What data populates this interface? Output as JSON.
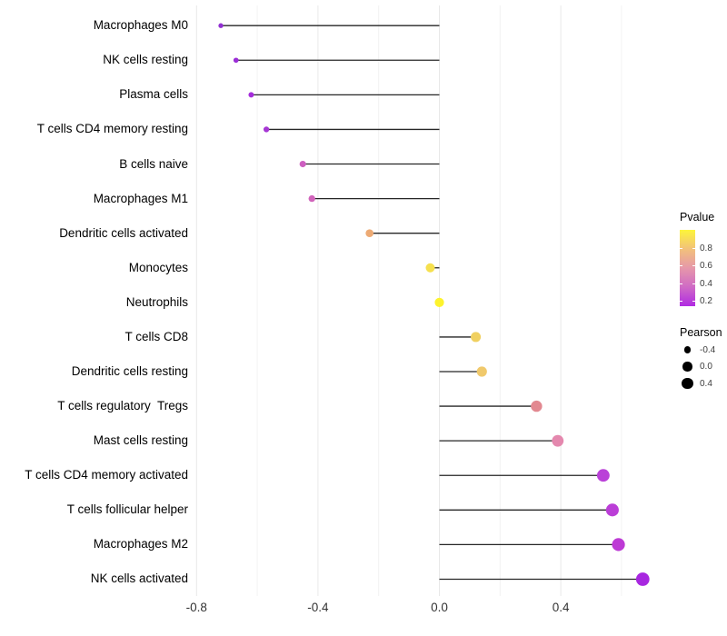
{
  "chart_data": {
    "type": "lollipop",
    "title": "",
    "xlabel": "",
    "ylabel": "",
    "x_axis": {
      "range": [
        -0.9,
        0.76
      ],
      "major_ticks": [
        -0.8,
        -0.4,
        0.0,
        0.4
      ],
      "major_tick_labels": [
        "-0.8",
        "-0.4",
        "0.0",
        "0.4"
      ],
      "minor_ticks": [
        -0.6,
        -0.2,
        0.2,
        0.6
      ],
      "grid": "on"
    },
    "points": [
      {
        "label": "Macrophages M0",
        "pearson": -0.72,
        "color": "#9230d2"
      },
      {
        "label": "NK cells resting",
        "pearson": -0.67,
        "color": "#9b2ed7"
      },
      {
        "label": "Plasma cells",
        "pearson": -0.62,
        "color": "#a52cdb"
      },
      {
        "label": "T cells CD4 memory resting",
        "pearson": -0.57,
        "color": "#a637d4"
      },
      {
        "label": "B cells naive",
        "pearson": -0.45,
        "color": "#cd5fc0"
      },
      {
        "label": "Macrophages M1",
        "pearson": -0.42,
        "color": "#d164bb"
      },
      {
        "label": "Dendritic cells activated",
        "pearson": -0.23,
        "color": "#edaa74"
      },
      {
        "label": "Monocytes",
        "pearson": -0.03,
        "color": "#f6e04e"
      },
      {
        "label": "Neutrophils",
        "pearson": 0.0,
        "color": "#fdf32d"
      },
      {
        "label": "T cells CD8",
        "pearson": 0.12,
        "color": "#f0d060"
      },
      {
        "label": "Dendritic cells resting",
        "pearson": 0.14,
        "color": "#f0c96c"
      },
      {
        "label": "T cells regulatory  Tregs",
        "pearson": 0.32,
        "color": "#e28890"
      },
      {
        "label": "Mast cells resting",
        "pearson": 0.39,
        "color": "#e488ae"
      },
      {
        "label": "T cells CD4 memory activated",
        "pearson": 0.54,
        "color": "#ba41d8"
      },
      {
        "label": "T cells follicular helper",
        "pearson": 0.57,
        "color": "#bb3ed7"
      },
      {
        "label": "Macrophages M2",
        "pearson": 0.59,
        "color": "#bd3ad5"
      },
      {
        "label": "NK cells activated",
        "pearson": 0.67,
        "color": "#a827e0"
      }
    ],
    "legends": {
      "pvalue": {
        "title": "Pvalue",
        "gradient_bottom_to_top": [
          "#b02be2",
          "#cf6ac5",
          "#e698aa",
          "#f2c17b",
          "#fdf53a"
        ],
        "ticks": [
          {
            "label": "0.8",
            "frac_from_top": 0.24
          },
          {
            "label": "0.6",
            "frac_from_top": 0.475
          },
          {
            "label": "0.4",
            "frac_from_top": 0.71
          },
          {
            "label": "0.2",
            "frac_from_top": 0.94
          }
        ]
      },
      "pearson": {
        "title": "Pearson",
        "sizes": [
          {
            "label": "-0.4",
            "value": -0.4
          },
          {
            "label": "0.0",
            "value": 0.0
          },
          {
            "label": "0.4",
            "value": 0.4
          }
        ]
      }
    },
    "style": {
      "stem_color": "#262626",
      "major_grid_color": "#e8e8e8",
      "minor_grid_color": "#f2f2f2",
      "background": "#ffffff"
    }
  }
}
